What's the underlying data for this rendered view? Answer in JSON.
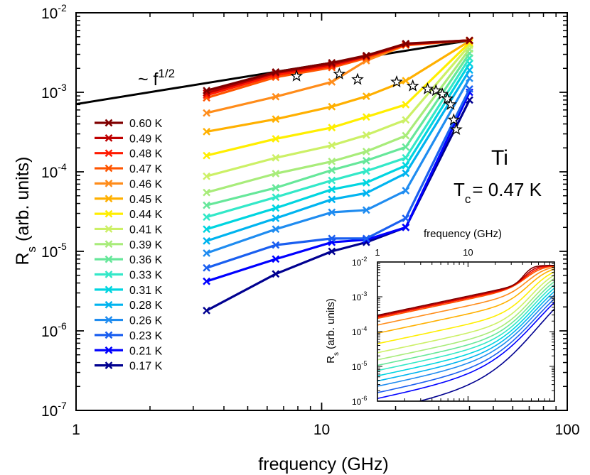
{
  "chart_data": [
    {
      "type": "line",
      "xscale": "log",
      "yscale": "log",
      "xlabel": "frequency (GHz)",
      "ylabel_main": "R",
      "ylabel_sub": "s",
      "ylabel_rest": " (arb. units)",
      "xlim": [
        1,
        100
      ],
      "ylim": [
        1e-07,
        0.01
      ],
      "x_tick_labels": [
        "1",
        "10",
        "100"
      ],
      "y_tick_labels": [
        {
          "base": "10",
          "exp": "-7"
        },
        {
          "base": "10",
          "exp": "-6"
        },
        {
          "base": "10",
          "exp": "-5"
        },
        {
          "base": "10",
          "exp": "-4"
        },
        {
          "base": "10",
          "exp": "-3"
        },
        {
          "base": "10",
          "exp": "-2"
        }
      ],
      "legend_position": "left",
      "frequencies": [
        3.4,
        6.5,
        11,
        15.2,
        22,
        40
      ],
      "series": [
        {
          "name": "0.60 K",
          "color": "#800000",
          "values": [
            0.00105,
            0.0018,
            0.00235,
            0.0029,
            0.0041,
            0.0045
          ]
        },
        {
          "name": "0.49 K",
          "color": "#bf0000",
          "values": [
            0.00098,
            0.00175,
            0.00225,
            0.00285,
            0.00405,
            0.0045
          ]
        },
        {
          "name": "0.48 K",
          "color": "#ff1a00",
          "values": [
            0.00092,
            0.00165,
            0.00215,
            0.0028,
            0.004,
            0.0045
          ]
        },
        {
          "name": "0.47 K",
          "color": "#ff5500",
          "values": [
            0.00085,
            0.00155,
            0.00205,
            0.0027,
            0.00395,
            0.0045
          ]
        },
        {
          "name": "0.46 K",
          "color": "#ff8c1a",
          "values": [
            0.00055,
            0.00088,
            0.00135,
            0.0025,
            0.0039,
            0.0045
          ]
        },
        {
          "name": "0.45 K",
          "color": "#ffb000",
          "values": [
            0.00032,
            0.00046,
            0.00066,
            0.00089,
            0.0014,
            0.0044
          ]
        },
        {
          "name": "0.44 K",
          "color": "#ffee00",
          "values": [
            0.00016,
            0.00026,
            0.00036,
            0.00049,
            0.0007,
            0.0042
          ]
        },
        {
          "name": "0.41 K",
          "color": "#ccf066",
          "values": [
            8.8e-05,
            0.00015,
            0.000215,
            0.00029,
            0.00045,
            0.0039
          ]
        },
        {
          "name": "0.39 K",
          "color": "#a8ec7a",
          "values": [
            5.5e-05,
            9.5e-05,
            0.000135,
            0.00018,
            0.000285,
            0.0035
          ]
        },
        {
          "name": "0.36 K",
          "color": "#66e79a",
          "values": [
            3.8e-05,
            6.3e-05,
            0.000105,
            0.000138,
            0.000205,
            0.0031
          ]
        },
        {
          "name": "0.33 K",
          "color": "#33e8c8",
          "values": [
            2.7e-05,
            4.8e-05,
            7.8e-05,
            0.000102,
            0.00015,
            0.0027
          ]
        },
        {
          "name": "0.31 K",
          "color": "#00d5e0",
          "values": [
            1.9e-05,
            3.5e-05,
            6e-05,
            7.3e-05,
            0.00012,
            0.0023
          ]
        },
        {
          "name": "0.28 K",
          "color": "#00b4ef",
          "values": [
            1.35e-05,
            2.6e-05,
            4.5e-05,
            5.4e-05,
            9.6e-05,
            0.0019
          ]
        },
        {
          "name": "0.26 K",
          "color": "#1f8cf0",
          "values": [
            9.5e-06,
            1.9e-05,
            3.1e-05,
            3.3e-05,
            5.8e-05,
            0.0015
          ]
        },
        {
          "name": "0.23 K",
          "color": "#1a5ff0",
          "values": [
            6.2e-06,
            1.2e-05,
            1.45e-05,
            1.45e-05,
            2.6e-05,
            0.0011
          ]
        },
        {
          "name": "0.21 K",
          "color": "#0000ff",
          "values": [
            4.2e-06,
            8e-06,
            1.3e-05,
            1.4e-05,
            2e-05,
            0.001
          ]
        },
        {
          "name": "0.17 K",
          "color": "#000090",
          "values": [
            1.8e-06,
            5.2e-06,
            1e-05,
            1.3e-05,
            2e-05,
            0.0008
          ]
        }
      ],
      "stars": [
        {
          "x": 7.9,
          "y": 0.0016
        },
        {
          "x": 11.8,
          "y": 0.0017
        },
        {
          "x": 14.0,
          "y": 0.00145
        },
        {
          "x": 20.2,
          "y": 0.00135
        },
        {
          "x": 23.5,
          "y": 0.0012
        },
        {
          "x": 27.0,
          "y": 0.0011
        },
        {
          "x": 29.2,
          "y": 0.00105
        },
        {
          "x": 31.0,
          "y": 0.00095
        },
        {
          "x": 32.5,
          "y": 0.00083
        },
        {
          "x": 33.5,
          "y": 0.0007
        },
        {
          "x": 34.5,
          "y": 0.00045
        },
        {
          "x": 35.3,
          "y": 0.00034
        }
      ],
      "annotations": {
        "power_law_prefix": "~ f",
        "power_law_exp": "1/2",
        "material": "Ti",
        "tc_main": "T",
        "tc_sub": "c",
        "tc_value": "= 0.47 K"
      }
    },
    {
      "type": "line",
      "xscale": "log",
      "yscale": "log",
      "xlabel": "frequency (GHz)",
      "ylabel_main": "R",
      "ylabel_sub": "s",
      "ylabel_rest": " (arb. units)",
      "xlim": [
        1,
        90
      ],
      "ylim": [
        1e-06,
        0.01
      ],
      "x_tick_labels": [
        "1",
        "10"
      ],
      "y_tick_labels": [
        {
          "base": "10",
          "exp": "-6"
        },
        {
          "base": "10",
          "exp": "-5"
        },
        {
          "base": "10",
          "exp": "-4"
        },
        {
          "base": "10",
          "exp": "-3"
        },
        {
          "base": "10",
          "exp": "-2"
        }
      ]
    }
  ]
}
